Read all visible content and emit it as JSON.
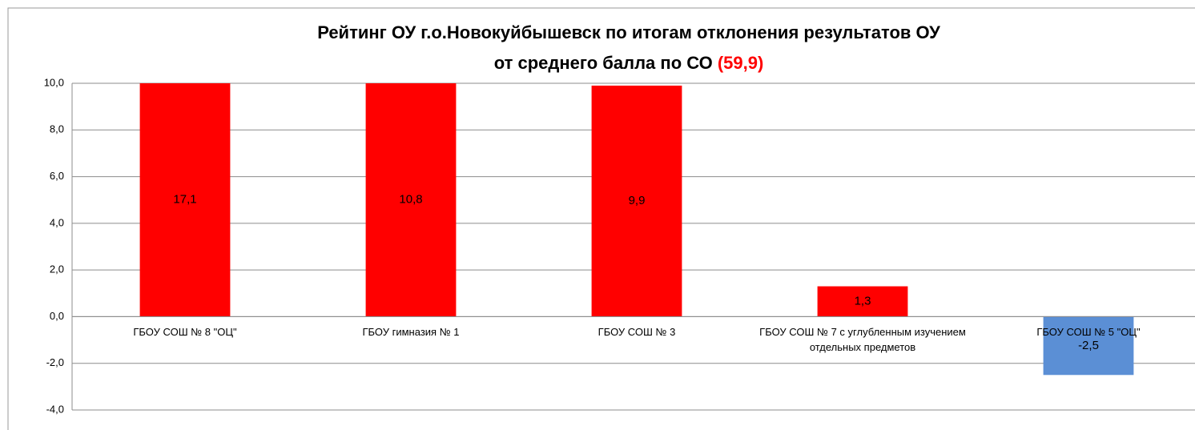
{
  "chart_data": {
    "type": "bar",
    "title": [
      "Рейтинг ОУ  г.о.Новокуйбышевск по итогам отклонения результатов ОУ",
      "от среднего балла по СО"
    ],
    "title_highlight": "(59,9)",
    "categories": [
      "ГБОУ СОШ № 8 \"ОЦ\"",
      "ГБОУ гимназия № 1",
      "ГБОУ СОШ № 3",
      "ГБОУ СОШ № 7 с углубленным изучением отдельных предметов",
      "ГБОУ СОШ № 5 \"ОЦ\""
    ],
    "values": [
      17.1,
      10.8,
      9.9,
      1.3,
      -2.5
    ],
    "value_labels": [
      "17,1",
      "10,8",
      "9,9",
      "1,3",
      "-2,5"
    ],
    "colors": [
      "#ff0000",
      "#ff0000",
      "#ff0000",
      "#ff0000",
      "#5b8fd5"
    ],
    "ylim": [
      -4,
      10
    ],
    "yticks": [
      {
        "value": -4,
        "label": "-4,0"
      },
      {
        "value": -2,
        "label": "-2,0"
      },
      {
        "value": 0,
        "label": "0,0"
      },
      {
        "value": 2,
        "label": "2,0"
      },
      {
        "value": 4,
        "label": "4,0"
      },
      {
        "value": 6,
        "label": "6,0"
      },
      {
        "value": 8,
        "label": "8,0"
      },
      {
        "value": 10,
        "label": "10,0"
      }
    ],
    "grid": true
  }
}
